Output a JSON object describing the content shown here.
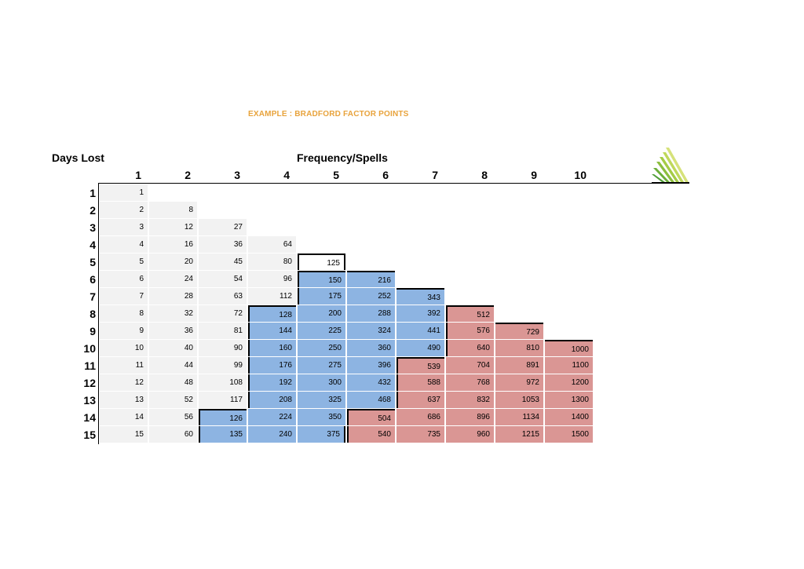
{
  "title": "EXAMPLE : BRADFORD FACTOR POINTS",
  "days_lost_label": "Days Lost",
  "frequency_label": "Frequency/Spells",
  "logo_icon": "green-triangle-stripes-logo-icon",
  "colors": {
    "title": "#E8A33C",
    "low": "#F2F2F2",
    "medium": "#8DB4E2",
    "high": "#DA9694"
  },
  "columns": [
    "1",
    "2",
    "3",
    "4",
    "5",
    "6",
    "7",
    "8",
    "9",
    "10"
  ],
  "rows": [
    {
      "label": "1",
      "values": [
        1
      ]
    },
    {
      "label": "2",
      "values": [
        2,
        8
      ]
    },
    {
      "label": "3",
      "values": [
        3,
        12,
        27
      ]
    },
    {
      "label": "4",
      "values": [
        4,
        16,
        36,
        64
      ]
    },
    {
      "label": "5",
      "values": [
        5,
        20,
        45,
        80,
        125
      ]
    },
    {
      "label": "6",
      "values": [
        6,
        24,
        54,
        96,
        150,
        216
      ]
    },
    {
      "label": "7",
      "values": [
        7,
        28,
        63,
        112,
        175,
        252,
        343
      ]
    },
    {
      "label": "8",
      "values": [
        8,
        32,
        72,
        128,
        200,
        288,
        392,
        512
      ]
    },
    {
      "label": "9",
      "values": [
        9,
        36,
        81,
        144,
        225,
        324,
        441,
        576,
        729
      ]
    },
    {
      "label": "10",
      "values": [
        10,
        40,
        90,
        160,
        250,
        360,
        490,
        640,
        810,
        1000
      ]
    },
    {
      "label": "11",
      "values": [
        11,
        44,
        99,
        176,
        275,
        396,
        539,
        704,
        891,
        1100
      ]
    },
    {
      "label": "12",
      "values": [
        12,
        48,
        108,
        192,
        300,
        432,
        588,
        768,
        972,
        1200
      ]
    },
    {
      "label": "13",
      "values": [
        13,
        52,
        117,
        208,
        325,
        468,
        637,
        832,
        1053,
        1300
      ]
    },
    {
      "label": "14",
      "values": [
        14,
        56,
        126,
        224,
        350,
        504,
        686,
        896,
        1134,
        1400
      ]
    },
    {
      "label": "15",
      "values": [
        15,
        60,
        135,
        240,
        375,
        540,
        735,
        960,
        1215,
        1500
      ]
    }
  ]
}
